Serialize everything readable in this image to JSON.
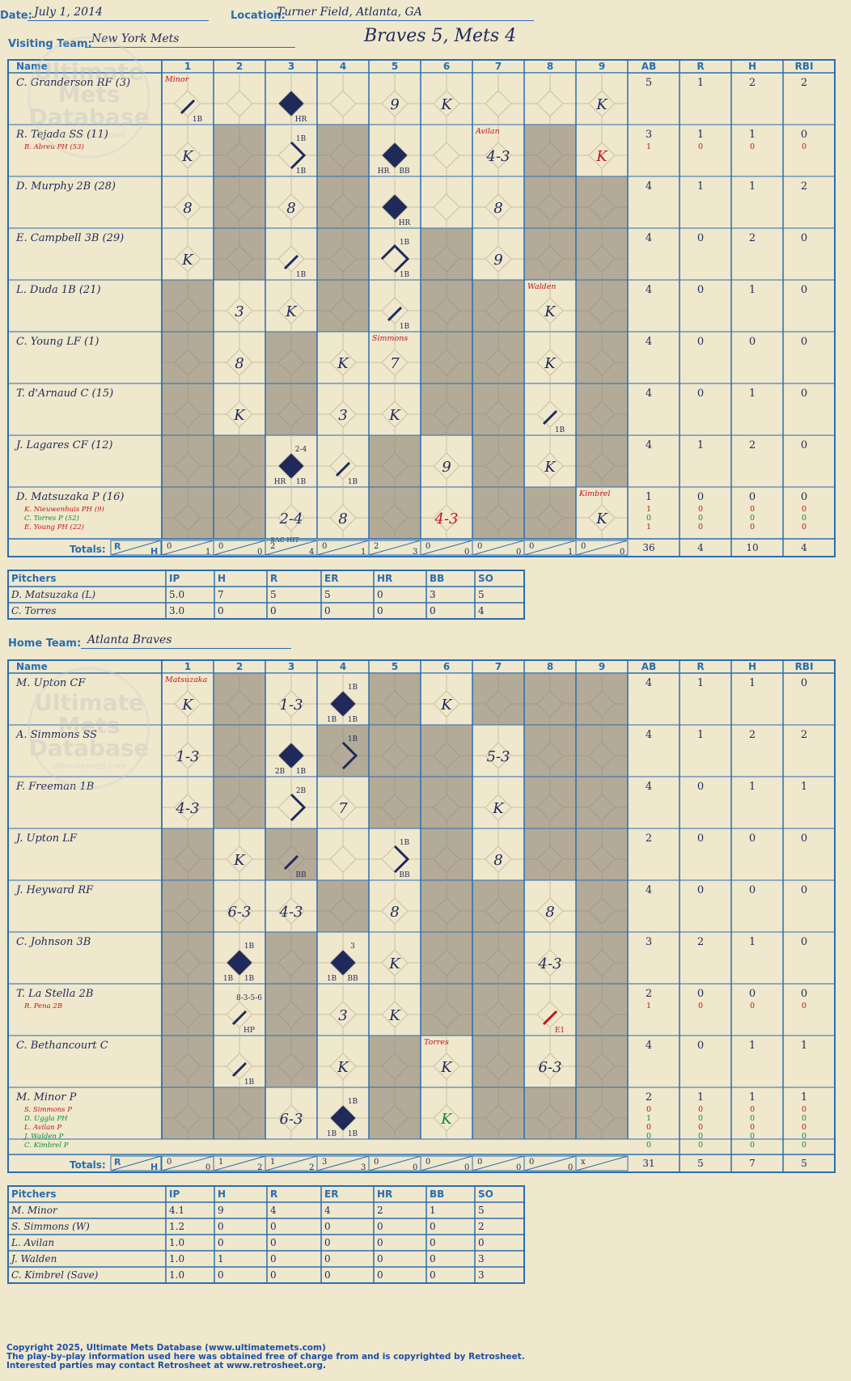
{
  "header": {
    "date_label": "Date:",
    "date": "July 1, 2014",
    "location_label": "Location:",
    "location": "Turner Field, Atlanta, GA",
    "title": "Braves 5, Mets 4",
    "visiting_label": "Visiting Team:",
    "visiting_team": "New York Mets",
    "home_label": "Home Team:",
    "home_team": "Atlanta Braves"
  },
  "watermark": {
    "line1": "Ultimate",
    "line2": "Mets",
    "line3": "Database",
    "url": "ultimatemets.com"
  },
  "grid_labels": {
    "name": "Name",
    "innings": [
      "1",
      "2",
      "3",
      "4",
      "5",
      "6",
      "7",
      "8",
      "9"
    ],
    "stats": [
      "AB",
      "R",
      "H",
      "RBI"
    ],
    "totals": "Totals:",
    "r": "R",
    "h": "H"
  },
  "colors": {
    "blue": "#2a6db0",
    "navy": "#1f2a5a",
    "red": "#c0141c",
    "green": "#108b30",
    "shade": "#b3ab97",
    "paper": "#efe8cd"
  },
  "visitors": {
    "players": [
      {
        "name": "C. Granderson RF (3)",
        "subs": [],
        "ab": "5",
        "r": "1",
        "h": "2",
        "rbi": "2",
        "subStats": []
      },
      {
        "name": "R. Tejada SS (11)",
        "subs": [
          {
            "text": "B. Abreu PH (53)",
            "color": "red"
          }
        ],
        "ab": "3",
        "r": "1",
        "h": "1",
        "rbi": "0",
        "subStats": [
          {
            "ab": "1",
            "r": "0",
            "h": "0",
            "rbi": "0",
            "color": "red"
          }
        ]
      },
      {
        "name": "D. Murphy 2B (28)",
        "subs": [],
        "ab": "4",
        "r": "1",
        "h": "1",
        "rbi": "2",
        "subStats": []
      },
      {
        "name": "E. Campbell 3B (29)",
        "subs": [],
        "ab": "4",
        "r": "0",
        "h": "2",
        "rbi": "0",
        "subStats": []
      },
      {
        "name": "L. Duda 1B (21)",
        "subs": [],
        "ab": "4",
        "r": "0",
        "h": "1",
        "rbi": "0",
        "subStats": []
      },
      {
        "name": "C. Young LF (1)",
        "subs": [],
        "ab": "4",
        "r": "0",
        "h": "0",
        "rbi": "0",
        "subStats": []
      },
      {
        "name": "T. d'Arnaud C (15)",
        "subs": [],
        "ab": "4",
        "r": "0",
        "h": "1",
        "rbi": "0",
        "subStats": []
      },
      {
        "name": "J. Lagares CF (12)",
        "subs": [],
        "ab": "4",
        "r": "1",
        "h": "2",
        "rbi": "0",
        "subStats": []
      },
      {
        "name": "D. Matsuzaka P (16)",
        "subs": [
          {
            "text": "K. Nieuwenhuis PH (9)",
            "color": "red"
          },
          {
            "text": "C. Torres P (52)",
            "color": "green"
          },
          {
            "text": "E. Young PH (22)",
            "color": "red"
          }
        ],
        "ab": "1",
        "r": "0",
        "h": "0",
        "rbi": "0",
        "subStats": [
          {
            "ab": "1",
            "r": "0",
            "h": "0",
            "rbi": "0",
            "color": "red"
          },
          {
            "ab": "0",
            "r": "0",
            "h": "0",
            "rbi": "0",
            "color": "green"
          },
          {
            "ab": "1",
            "r": "0",
            "h": "0",
            "rbi": "0",
            "color": "red"
          }
        ]
      }
    ],
    "shaded": [
      [
        0,
        0,
        0,
        0,
        0,
        0,
        0,
        0,
        0
      ],
      [
        0,
        1,
        0,
        1,
        0,
        0,
        0,
        1,
        0
      ],
      [
        0,
        1,
        0,
        1,
        0,
        0,
        0,
        1,
        1
      ],
      [
        0,
        1,
        0,
        1,
        0,
        1,
        0,
        1,
        1
      ],
      [
        1,
        0,
        0,
        1,
        0,
        1,
        1,
        0,
        1
      ],
      [
        1,
        0,
        1,
        0,
        0,
        1,
        1,
        0,
        1
      ],
      [
        1,
        0,
        1,
        0,
        0,
        1,
        1,
        0,
        1
      ],
      [
        1,
        1,
        0,
        0,
        1,
        0,
        1,
        0,
        1
      ],
      [
        1,
        1,
        0,
        0,
        1,
        0,
        1,
        1,
        0
      ]
    ],
    "plays": [
      {
        "r": 0,
        "c": 0,
        "code": "",
        "bases": 1,
        "label": "1B",
        "note": "Minor"
      },
      {
        "r": 0,
        "c": 2,
        "code": "",
        "run": true,
        "label": "HR"
      },
      {
        "r": 0,
        "c": 4,
        "code": "9"
      },
      {
        "r": 0,
        "c": 5,
        "code": "K"
      },
      {
        "r": 0,
        "c": 8,
        "code": "K"
      },
      {
        "r": 1,
        "c": 0,
        "code": "K"
      },
      {
        "r": 1,
        "c": 2,
        "code": "",
        "bases": 2,
        "label": "1B",
        "top": "1B"
      },
      {
        "r": 1,
        "c": 4,
        "code": "",
        "run": true,
        "label": "HR",
        "label2": "BB"
      },
      {
        "r": 1,
        "c": 6,
        "code": "4-3",
        "note": "Avilan"
      },
      {
        "r": 1,
        "c": 8,
        "code": "K",
        "color": "red"
      },
      {
        "r": 2,
        "c": 0,
        "code": "8"
      },
      {
        "r": 2,
        "c": 2,
        "code": "8"
      },
      {
        "r": 2,
        "c": 4,
        "code": "",
        "run": true,
        "label": "HR"
      },
      {
        "r": 2,
        "c": 6,
        "code": "8"
      },
      {
        "r": 3,
        "c": 0,
        "code": "K"
      },
      {
        "r": 3,
        "c": 2,
        "code": "",
        "bases": 1,
        "label": "1B"
      },
      {
        "r": 3,
        "c": 4,
        "code": "",
        "bases": 3,
        "label": "1B",
        "top": "1B"
      },
      {
        "r": 3,
        "c": 6,
        "code": "9"
      },
      {
        "r": 4,
        "c": 1,
        "code": "3"
      },
      {
        "r": 4,
        "c": 2,
        "code": "K"
      },
      {
        "r": 4,
        "c": 4,
        "code": "",
        "bases": 1,
        "label": "1B"
      },
      {
        "r": 4,
        "c": 7,
        "code": "K",
        "note": "Walden"
      },
      {
        "r": 5,
        "c": 1,
        "code": "8"
      },
      {
        "r": 5,
        "c": 3,
        "code": "K"
      },
      {
        "r": 5,
        "c": 4,
        "code": "7",
        "note": "Simmons"
      },
      {
        "r": 5,
        "c": 7,
        "code": "K"
      },
      {
        "r": 6,
        "c": 1,
        "code": "K"
      },
      {
        "r": 6,
        "c": 3,
        "code": "3"
      },
      {
        "r": 6,
        "c": 4,
        "code": "K"
      },
      {
        "r": 6,
        "c": 7,
        "code": "",
        "bases": 1,
        "label": "1B"
      },
      {
        "r": 7,
        "c": 2,
        "code": "",
        "run": true,
        "label": "HR",
        "label2": "1B",
        "top": "2-4"
      },
      {
        "r": 7,
        "c": 3,
        "code": "",
        "bases": 1,
        "label": "1B"
      },
      {
        "r": 7,
        "c": 5,
        "code": "9"
      },
      {
        "r": 7,
        "c": 7,
        "code": "K"
      },
      {
        "r": 8,
        "c": 2,
        "code": "2-4",
        "below": "SAC HIT"
      },
      {
        "r": 8,
        "c": 3,
        "code": "8"
      },
      {
        "r": 8,
        "c": 5,
        "code": "4-3",
        "color": "red"
      },
      {
        "r": 8,
        "c": 8,
        "code": "K",
        "note": "Kimbrel"
      }
    ],
    "totals": [
      [
        "0",
        "1"
      ],
      [
        "0",
        "0"
      ],
      [
        "2",
        "4"
      ],
      [
        "0",
        "1"
      ],
      [
        "2",
        "3"
      ],
      [
        "0",
        "0"
      ],
      [
        "0",
        "0"
      ],
      [
        "0",
        "1"
      ],
      [
        "0",
        "0"
      ]
    ],
    "totalStats": {
      "ab": "36",
      "r": "4",
      "h": "10",
      "rbi": "4"
    },
    "pitchers": [
      {
        "name": "D. Matsuzaka (L)",
        "ip": "5.0",
        "h": "7",
        "r": "5",
        "er": "5",
        "hr": "0",
        "bb": "3",
        "so": "5"
      },
      {
        "name": "C. Torres",
        "ip": "3.0",
        "h": "0",
        "r": "0",
        "er": "0",
        "hr": "0",
        "bb": "0",
        "so": "4"
      }
    ]
  },
  "home": {
    "players": [
      {
        "name": "M. Upton CF",
        "subs": [],
        "ab": "4",
        "r": "1",
        "h": "1",
        "rbi": "0",
        "subStats": []
      },
      {
        "name": "A. Simmons SS",
        "subs": [],
        "ab": "4",
        "r": "1",
        "h": "2",
        "rbi": "2",
        "subStats": []
      },
      {
        "name": "F. Freeman 1B",
        "subs": [],
        "ab": "4",
        "r": "0",
        "h": "1",
        "rbi": "1",
        "subStats": []
      },
      {
        "name": "J. Upton LF",
        "subs": [],
        "ab": "2",
        "r": "0",
        "h": "0",
        "rbi": "0",
        "subStats": []
      },
      {
        "name": "J. Heyward RF",
        "subs": [],
        "ab": "4",
        "r": "0",
        "h": "0",
        "rbi": "0",
        "subStats": []
      },
      {
        "name": "C. Johnson 3B",
        "subs": [],
        "ab": "3",
        "r": "2",
        "h": "1",
        "rbi": "0",
        "subStats": []
      },
      {
        "name": "T. La Stella 2B",
        "subs": [
          {
            "text": "R. Pena 2B",
            "color": "red"
          }
        ],
        "ab": "2",
        "r": "0",
        "h": "0",
        "rbi": "0",
        "subStats": [
          {
            "ab": "1",
            "r": "0",
            "h": "0",
            "rbi": "0",
            "color": "red"
          }
        ]
      },
      {
        "name": "C. Bethancourt C",
        "subs": [],
        "ab": "4",
        "r": "0",
        "h": "1",
        "rbi": "1",
        "subStats": []
      },
      {
        "name": "M. Minor P",
        "subs": [
          {
            "text": "S. Simmons P",
            "color": "red"
          },
          {
            "text": "D. Uggla PH",
            "color": "green"
          },
          {
            "text": "L. Avilan P",
            "color": "red"
          },
          {
            "text": "J. Walden P",
            "color": "green"
          },
          {
            "text": "C. Kimbrel P",
            "color": "green"
          }
        ],
        "ab": "2",
        "r": "1",
        "h": "1",
        "rbi": "1",
        "subStats": [
          {
            "ab": "0",
            "r": "0",
            "h": "0",
            "rbi": "0",
            "color": "red"
          },
          {
            "ab": "1",
            "r": "0",
            "h": "0",
            "rbi": "0",
            "color": "green"
          },
          {
            "ab": "0",
            "r": "0",
            "h": "0",
            "rbi": "0",
            "color": "red"
          },
          {
            "ab": "0",
            "r": "0",
            "h": "0",
            "rbi": "0",
            "color": "green"
          },
          {
            "ab": "0",
            "r": "0",
            "h": "0",
            "rbi": "0",
            "color": "green"
          }
        ]
      }
    ],
    "shaded": [
      [
        0,
        1,
        0,
        0,
        1,
        0,
        1,
        1,
        1
      ],
      [
        0,
        1,
        0,
        1,
        1,
        1,
        0,
        1,
        1
      ],
      [
        0,
        1,
        0,
        0,
        1,
        1,
        0,
        1,
        1
      ],
      [
        1,
        0,
        1,
        0,
        0,
        1,
        0,
        1,
        1
      ],
      [
        1,
        0,
        0,
        1,
        0,
        1,
        1,
        0,
        1
      ],
      [
        1,
        0,
        1,
        0,
        0,
        1,
        1,
        0,
        1
      ],
      [
        1,
        0,
        1,
        0,
        0,
        1,
        1,
        0,
        1
      ],
      [
        1,
        0,
        1,
        0,
        1,
        0,
        1,
        0,
        1
      ],
      [
        1,
        1,
        0,
        0,
        1,
        0,
        1,
        1,
        1
      ]
    ],
    "plays": [
      {
        "r": 0,
        "c": 0,
        "code": "K",
        "note": "Matsuzaka"
      },
      {
        "r": 0,
        "c": 2,
        "code": "1-3"
      },
      {
        "r": 0,
        "c": 3,
        "code": "",
        "run": true,
        "label": "1B",
        "label2": "1B",
        "top": "1B"
      },
      {
        "r": 0,
        "c": 5,
        "code": "K"
      },
      {
        "r": 1,
        "c": 0,
        "code": "1-3"
      },
      {
        "r": 1,
        "c": 2,
        "code": "",
        "run": true,
        "label": "2B",
        "label2": "1B"
      },
      {
        "r": 1,
        "c": 3,
        "code": "",
        "bases": 2,
        "label": "",
        "top": "1B"
      },
      {
        "r": 1,
        "c": 6,
        "code": "5-3"
      },
      {
        "r": 2,
        "c": 0,
        "code": "4-3"
      },
      {
        "r": 2,
        "c": 2,
        "code": "",
        "bases": 2,
        "label": "",
        "top": "2B"
      },
      {
        "r": 2,
        "c": 3,
        "code": "7"
      },
      {
        "r": 2,
        "c": 6,
        "code": "K"
      },
      {
        "r": 3,
        "c": 1,
        "code": "K"
      },
      {
        "r": 3,
        "c": 2,
        "code": "",
        "bases": 1,
        "label": "BB"
      },
      {
        "r": 3,
        "c": 4,
        "code": "",
        "bases": 2,
        "label": "BB",
        "top": "1B"
      },
      {
        "r": 3,
        "c": 6,
        "code": "8"
      },
      {
        "r": 4,
        "c": 1,
        "code": "6-3"
      },
      {
        "r": 4,
        "c": 2,
        "code": "4-3"
      },
      {
        "r": 4,
        "c": 4,
        "code": "8"
      },
      {
        "r": 4,
        "c": 7,
        "code": "8"
      },
      {
        "r": 5,
        "c": 1,
        "code": "",
        "run": true,
        "label": "1B",
        "label2": "1B",
        "top": "1B"
      },
      {
        "r": 5,
        "c": 3,
        "code": "",
        "run": true,
        "label": "1B",
        "label2": "BB",
        "top": "3"
      },
      {
        "r": 5,
        "c": 4,
        "code": "K"
      },
      {
        "r": 5,
        "c": 7,
        "code": "4-3"
      },
      {
        "r": 6,
        "c": 1,
        "code": "",
        "bases": 1,
        "label": "HP",
        "top": "8-3-5-6"
      },
      {
        "r": 6,
        "c": 3,
        "code": "3"
      },
      {
        "r": 6,
        "c": 4,
        "code": "K"
      },
      {
        "r": 6,
        "c": 7,
        "code": "",
        "bases": 1,
        "label": "E1",
        "color": "red"
      },
      {
        "r": 7,
        "c": 1,
        "code": "",
        "bases": 1,
        "label": "1B"
      },
      {
        "r": 7,
        "c": 3,
        "code": "K"
      },
      {
        "r": 7,
        "c": 5,
        "code": "K",
        "note": "Torres"
      },
      {
        "r": 7,
        "c": 7,
        "code": "6-3"
      },
      {
        "r": 8,
        "c": 2,
        "code": "6-3"
      },
      {
        "r": 8,
        "c": 3,
        "code": "",
        "run": true,
        "label": "1B",
        "label2": "1B",
        "top": "1B"
      },
      {
        "r": 8,
        "c": 5,
        "code": "K",
        "color": "green"
      }
    ],
    "totals": [
      [
        "0",
        "0"
      ],
      [
        "1",
        "2"
      ],
      [
        "1",
        "2"
      ],
      [
        "3",
        "3"
      ],
      [
        "0",
        "0"
      ],
      [
        "0",
        "0"
      ],
      [
        "0",
        "0"
      ],
      [
        "0",
        "0"
      ],
      [
        "x",
        ""
      ]
    ],
    "totalStats": {
      "ab": "31",
      "r": "5",
      "h": "7",
      "rbi": "5"
    },
    "pitchers": [
      {
        "name": "M. Minor",
        "ip": "4.1",
        "h": "9",
        "r": "4",
        "er": "4",
        "hr": "2",
        "bb": "1",
        "so": "5"
      },
      {
        "name": "S. Simmons (W)",
        "ip": "1.2",
        "h": "0",
        "r": "0",
        "er": "0",
        "hr": "0",
        "bb": "0",
        "so": "2"
      },
      {
        "name": "L. Avilan",
        "ip": "1.0",
        "h": "0",
        "r": "0",
        "er": "0",
        "hr": "0",
        "bb": "0",
        "so": "0"
      },
      {
        "name": "J. Walden",
        "ip": "1.0",
        "h": "1",
        "r": "0",
        "er": "0",
        "hr": "0",
        "bb": "0",
        "so": "3"
      },
      {
        "name": "C. Kimbrel (Save)",
        "ip": "1.0",
        "h": "0",
        "r": "0",
        "er": "0",
        "hr": "0",
        "bb": "0",
        "so": "3"
      }
    ]
  },
  "pitch_header": [
    "Pitchers",
    "IP",
    "H",
    "R",
    "ER",
    "HR",
    "BB",
    "SO"
  ],
  "footer": {
    "line1": "Copyright 2025, Ultimate Mets Database (www.ultimatemets.com)",
    "line2": "The play-by-play information used here was obtained free of charge from and is copyrighted by Retrosheet.",
    "line3": "Interested parties may contact Retrosheet at www.retrosheet.org."
  }
}
